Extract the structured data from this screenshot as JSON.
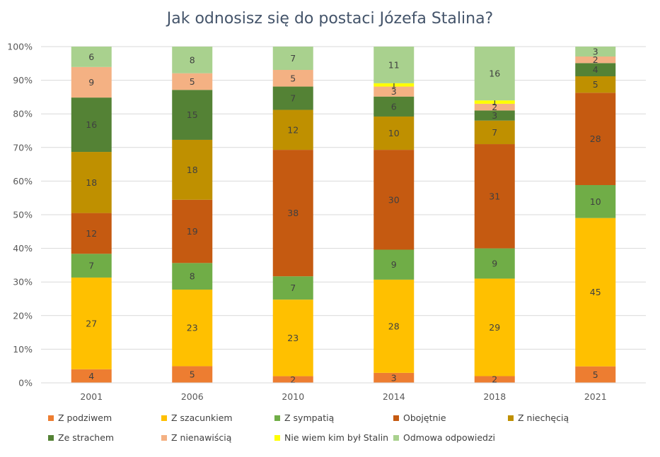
{
  "chart_data": {
    "type": "bar",
    "stacked": "percent",
    "title": "Jak odnosisz się do postaci Józefa Stalina?",
    "xlabel": "",
    "ylabel": "",
    "ylim": [
      0,
      100
    ],
    "yticks": [
      "0%",
      "10%",
      "20%",
      "30%",
      "40%",
      "50%",
      "60%",
      "70%",
      "80%",
      "90%",
      "100%"
    ],
    "grid": true,
    "legend": "bottom",
    "categories": [
      "2001",
      "2006",
      "2010",
      "2014",
      "2018",
      "2021"
    ],
    "series": [
      {
        "name": "Z podziwem",
        "color": "#ed7d31",
        "values": [
          4,
          5,
          2,
          3,
          2,
          5
        ],
        "labels": [
          "4",
          "5",
          "2",
          "3",
          "2",
          "5"
        ]
      },
      {
        "name": "Z szacunkiem",
        "color": "#ffc000",
        "values": [
          27,
          23,
          23,
          28,
          29,
          45
        ],
        "labels": [
          "27",
          "23",
          "23",
          "28",
          "29",
          "45"
        ]
      },
      {
        "name": "Z sympatią",
        "color": "#70ad47",
        "values": [
          7,
          8,
          7,
          9,
          9,
          10
        ],
        "labels": [
          "7",
          "8",
          "7",
          "9",
          "9",
          "10"
        ]
      },
      {
        "name": "Obojętnie",
        "color": "#c55a11",
        "values": [
          12,
          19,
          38,
          30,
          31,
          28
        ],
        "labels": [
          "12",
          "19",
          "38",
          "30",
          "31",
          "28"
        ]
      },
      {
        "name": "Z niechęcią",
        "color": "#bf9000",
        "values": [
          18,
          18,
          12,
          10,
          7,
          5
        ],
        "labels": [
          "18",
          "18",
          "12",
          "10",
          "7",
          "5"
        ]
      },
      {
        "name": "Ze strachem",
        "color": "#548235",
        "values": [
          16,
          15,
          7,
          6,
          3,
          4
        ],
        "labels": [
          "16",
          "15",
          "7",
          "6",
          "3",
          "4"
        ]
      },
      {
        "name": "Z nienawiścią",
        "color": "#f4b183",
        "values": [
          9,
          5,
          5,
          3,
          2,
          2
        ],
        "labels": [
          "9",
          "5",
          "5",
          "3",
          "2",
          "2"
        ]
      },
      {
        "name": "Nie wiem kim był Stalin",
        "color": "#ffff00",
        "values": [
          0,
          0,
          0,
          1,
          1,
          0
        ],
        "labels": [
          "",
          "",
          "",
          "1",
          "1",
          ""
        ]
      },
      {
        "name": "Odmowa odpowiedzi",
        "color": "#a9d18e",
        "values": [
          6,
          8,
          7,
          11,
          16,
          3
        ],
        "labels": [
          "6",
          "8",
          "7",
          "11",
          "16",
          "3"
        ]
      }
    ]
  }
}
